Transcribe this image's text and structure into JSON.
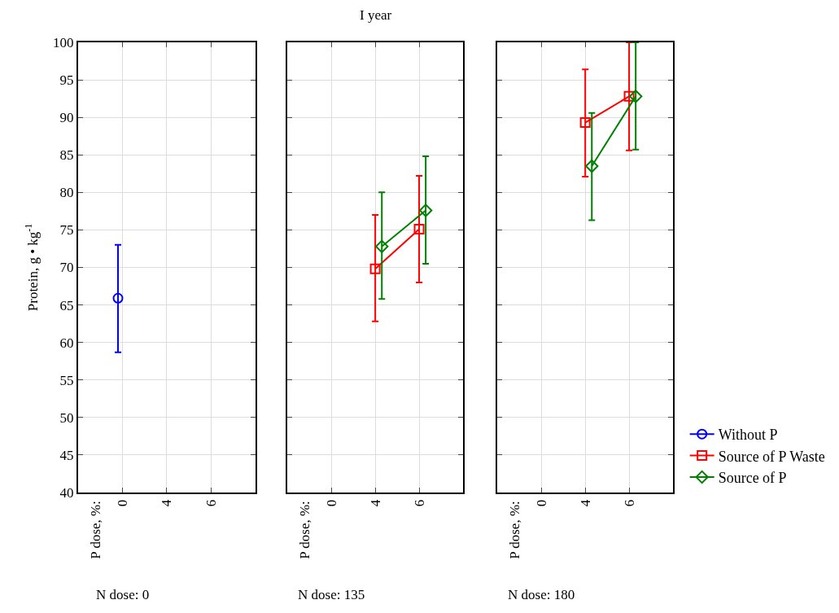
{
  "chart_data": [
    {
      "type": "line",
      "ylabel": "Protein, g • kg$^{-1}$",
      "annotations": [
        "P dose, %:",
        "N dose: 0"
      ],
      "categories": [
        "0",
        "4",
        "6"
      ],
      "ylim": [
        40,
        100
      ],
      "yticks": [
        40,
        45,
        50,
        55,
        60,
        65,
        70,
        75,
        80,
        85,
        90,
        95,
        100
      ],
      "grid": true,
      "line_style": "solid",
      "legend": "bottom right",
      "series": [
        {
          "name": "Without P",
          "color": "#0000ff",
          "marker": "circle",
          "values": [
            65.9,
            null,
            null
          ],
          "errors": [
            [
              58.7,
              73.0
            ],
            null,
            null
          ]
        }
      ]
    },
    {
      "type": "line",
      "title": "I year",
      "annotations": [
        "P dose, %:",
        "N dose: 135"
      ],
      "categories": [
        "0",
        "4",
        "6"
      ],
      "ylim": [
        40,
        100
      ],
      "yticks": [
        40,
        45,
        50,
        55,
        60,
        65,
        70,
        75,
        80,
        85,
        90,
        95,
        100
      ],
      "tick_labels": "x",
      "grid": true,
      "line_style": "solid",
      "legend": "bottom right",
      "series": [
        {
          "name": "Source of P Waste",
          "color": "#ff0000",
          "marker": "square",
          "values": [
            null,
            69.8,
            75.1
          ],
          "errors": [
            null,
            [
              62.8,
              77.0
            ],
            [
              68.0,
              82.2
            ]
          ]
        },
        {
          "name": "Source of P",
          "color": "#008000",
          "marker": "diamond",
          "values": [
            null,
            72.8,
            77.6
          ],
          "errors": [
            null,
            [
              65.8,
              80.0
            ],
            [
              70.5,
              84.8
            ]
          ]
        }
      ]
    },
    {
      "type": "line",
      "annotations": [
        "P dose, %:",
        "N dose: 180"
      ],
      "categories": [
        "0",
        "4",
        "6"
      ],
      "ylim": [
        40,
        100
      ],
      "yticks": [
        40,
        45,
        50,
        55,
        60,
        65,
        70,
        75,
        80,
        85,
        90,
        95,
        100
      ],
      "tick_labels": "x",
      "grid": true,
      "line_style": "solid",
      "legend": "bottom right",
      "series": [
        {
          "name": "Source of P Waste",
          "color": "#ff0000",
          "marker": "square",
          "values": [
            null,
            89.3,
            92.8
          ],
          "errors": [
            null,
            [
              82.1,
              96.4
            ],
            [
              85.6,
              100
            ]
          ]
        },
        {
          "name": "Source of P",
          "color": "#008000",
          "marker": "diamond",
          "values": [
            null,
            83.5,
            92.8
          ],
          "errors": [
            null,
            [
              76.3,
              90.6
            ],
            [
              85.7,
              100
            ]
          ]
        }
      ]
    }
  ]
}
